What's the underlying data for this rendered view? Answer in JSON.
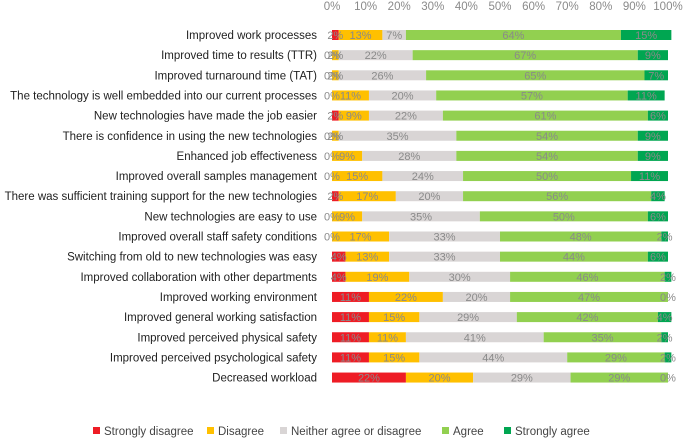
{
  "chart_data": {
    "type": "bar",
    "orientation": "horizontal",
    "stacked": true,
    "percent": true,
    "xlim": [
      0,
      100
    ],
    "x_ticks": [
      "0%",
      "10%",
      "20%",
      "30%",
      "40%",
      "50%",
      "60%",
      "70%",
      "80%",
      "90%",
      "100%"
    ],
    "x_axis_position": "top",
    "grid": false,
    "legend_position": "bottom",
    "categories": [
      "Improved work processes",
      "Improved time to results (TTR)",
      "Improved turnaround time (TAT)",
      "The technology is well embedded into our current processes",
      "New technologies have made the job easier",
      "There is confidence in using the new technologies",
      "Enhanced  job effectiveness",
      "Improved overall samples management",
      "There was sufficient training support for the new technologies",
      "New technologies are easy to use",
      "Improved overall staff safety conditions",
      "Switching from old to new technologies was easy",
      "Improved collaboration with other departments",
      "Improved working environment",
      "Improved general working satisfaction",
      "Improved perceived physical safety",
      "Improved perceived psychological safety",
      "Decreased workload"
    ],
    "series": [
      {
        "name": "Strongly disagree",
        "color": "#ee1c25",
        "values": [
          2,
          0,
          0,
          0,
          2,
          0,
          0,
          0,
          2,
          0,
          0,
          4,
          4,
          11,
          11,
          11,
          11,
          22
        ],
        "labels": [
          "2%",
          "0%",
          "0%",
          "0%",
          "2%",
          "0%",
          "0%",
          "0%",
          "2%",
          "0%",
          "0%",
          "4%",
          "4%",
          "11%",
          "11%",
          "11%",
          "11%",
          "22%"
        ]
      },
      {
        "name": "Disagree",
        "color": "#ffc000",
        "values": [
          13,
          2,
          2,
          11,
          9,
          2,
          9,
          15,
          17,
          9,
          17,
          13,
          19,
          22,
          15,
          11,
          15,
          20
        ],
        "labels": [
          "13%",
          "2%",
          "2%",
          "11%",
          "9%",
          "2%",
          "9%",
          "15%",
          "17%",
          "9%",
          "17%",
          "13%",
          "19%",
          "22%",
          "15%",
          "11%",
          "15%",
          "20%"
        ]
      },
      {
        "name": "Neither agree or disagree",
        "color": "#d9d5d5",
        "values": [
          7,
          22,
          26,
          20,
          22,
          35,
          28,
          24,
          20,
          35,
          33,
          33,
          30,
          20,
          29,
          41,
          44,
          29
        ],
        "labels": [
          "7%",
          "22%",
          "26%",
          "20%",
          "22%",
          "35%",
          "28%",
          "24%",
          "20%",
          "35%",
          "33%",
          "33%",
          "30%",
          "20%",
          "29%",
          "41%",
          "44%",
          "29%"
        ]
      },
      {
        "name": "Agree",
        "color": "#92d050",
        "values": [
          64,
          67,
          65,
          57,
          61,
          54,
          54,
          50,
          56,
          50,
          48,
          44,
          46,
          47,
          42,
          35,
          29,
          29
        ],
        "labels": [
          "64%",
          "67%",
          "65%",
          "57%",
          "61%",
          "54%",
          "54%",
          "50%",
          "56%",
          "50%",
          "48%",
          "44%",
          "46%",
          "47%",
          "42%",
          "35%",
          "29%",
          "29%"
        ]
      },
      {
        "name": "Strongly agree",
        "color": "#00a651",
        "values": [
          15,
          9,
          7,
          11,
          6,
          9,
          9,
          11,
          4,
          6,
          2,
          6,
          2,
          0,
          4,
          2,
          2,
          0
        ],
        "labels": [
          "15%",
          "9%",
          "7%",
          "11%",
          "6%",
          "9%",
          "9%",
          "11%",
          "4%",
          "6%",
          "2%",
          "6%",
          "2%",
          "0%",
          "4%",
          "2%",
          "2%",
          "0%"
        ]
      }
    ]
  }
}
